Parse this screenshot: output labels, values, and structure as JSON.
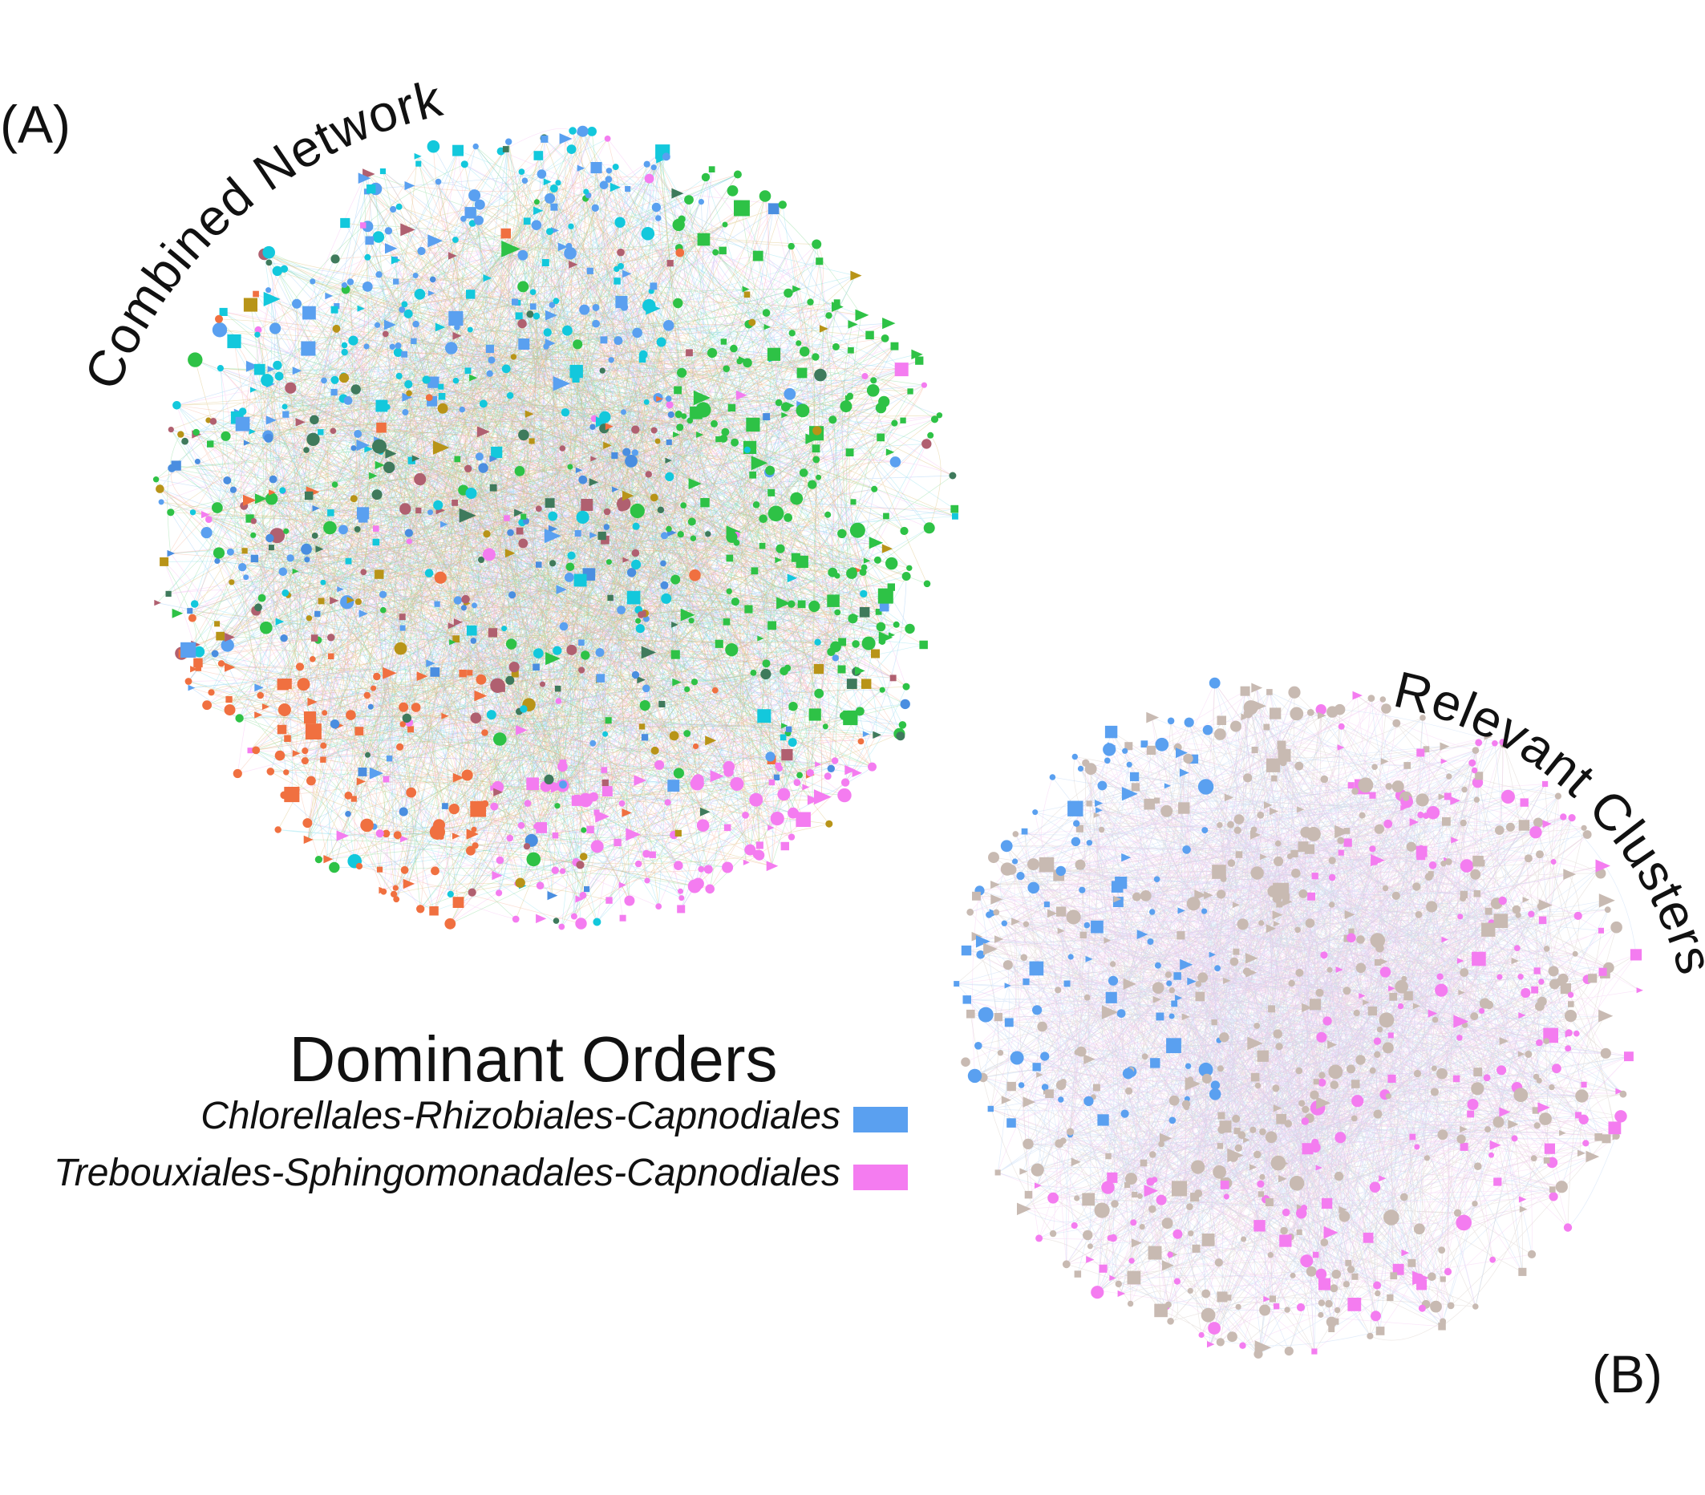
{
  "panels": [
    {
      "label": "(A)",
      "title": "Combined Network",
      "palette": [
        "#5aa0f0",
        "#13c8dc",
        "#2ec246",
        "#3f7a5c",
        "#b06070",
        "#f07040",
        "#f47cf0",
        "#b89418",
        "#4a8ee0"
      ],
      "edge_palette": [
        "#7ab6f0",
        "#6ad8e8",
        "#66d27a",
        "#f4a080",
        "#f4a6ee",
        "#d0b050"
      ],
      "node_count": 1100,
      "edge_count": 2600
    },
    {
      "label": "(B)",
      "title": "Relevant Clusters",
      "palette": [
        "#c8bab2",
        "#c8bab2",
        "#c8bab2",
        "#5aa0f0",
        "#f47cf0"
      ],
      "edge_palette": [
        "#c8bab2",
        "#a8c8f0",
        "#f0b8ee"
      ],
      "node_count": 820,
      "edge_count": 2200
    }
  ],
  "legend": {
    "title": "Dominant Orders",
    "entries": [
      {
        "label": "Chlorellales-Rhizobiales-Capnodiales",
        "color": "#5aa0f0"
      },
      {
        "label": "Trebouxiales-Sphingomonadales-Capnodiales",
        "color": "#f47cf0"
      }
    ]
  }
}
